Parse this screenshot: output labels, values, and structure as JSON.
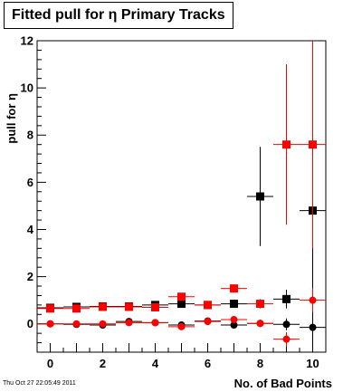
{
  "title": "Fitted pull for  η Primary Tracks",
  "timestamp": "Thu Oct 27 22:05:49 2011",
  "chart_data": {
    "type": "scatter",
    "title": "Fitted pull for  η Primary Tracks",
    "xlabel": "No. of Bad Points",
    "ylabel": "pull for η",
    "xlim": [
      -0.5,
      10.5
    ],
    "ylim": [
      -1.2,
      12.0
    ],
    "x_ticks": [
      0,
      2,
      4,
      6,
      8,
      10
    ],
    "y_ticks": [
      0,
      2,
      4,
      6,
      8,
      10,
      12
    ],
    "grid": false,
    "series": [
      {
        "marker": "square",
        "color": "#000000",
        "points": [
          {
            "x": 0,
            "y": 0.68,
            "err": 0.03
          },
          {
            "x": 1,
            "y": 0.72,
            "err": 0.03
          },
          {
            "x": 2,
            "y": 0.74,
            "err": 0.04
          },
          {
            "x": 3,
            "y": 0.74,
            "err": 0.04
          },
          {
            "x": 4,
            "y": 0.8,
            "err": 0.05
          },
          {
            "x": 5,
            "y": 0.85,
            "err": 0.06
          },
          {
            "x": 6,
            "y": 0.8,
            "err": 0.08
          },
          {
            "x": 7,
            "y": 0.85,
            "err": 0.12
          },
          {
            "x": 8,
            "y": 5.4,
            "err": 2.1
          },
          {
            "x": 9,
            "y": 1.05,
            "err": 0.4
          },
          {
            "x": 10,
            "y": 4.8,
            "err": 7.2
          }
        ]
      },
      {
        "marker": "square",
        "color": "#ff0000",
        "points": [
          {
            "x": 0,
            "y": 0.65,
            "err": 0.03
          },
          {
            "x": 1,
            "y": 0.65,
            "err": 0.03
          },
          {
            "x": 2,
            "y": 0.72,
            "err": 0.04
          },
          {
            "x": 3,
            "y": 0.72,
            "err": 0.04
          },
          {
            "x": 4,
            "y": 0.7,
            "err": 0.05
          },
          {
            "x": 5,
            "y": 1.15,
            "err": 0.06
          },
          {
            "x": 6,
            "y": 0.8,
            "err": 0.08
          },
          {
            "x": 7,
            "y": 1.5,
            "err": 0.12
          },
          {
            "x": 8,
            "y": 0.85,
            "err": 0.2
          },
          {
            "x": 9,
            "y": 7.6,
            "err": 3.4
          },
          {
            "x": 10,
            "y": 7.6,
            "err": 4.4
          }
        ]
      },
      {
        "marker": "circle",
        "color": "#000000",
        "points": [
          {
            "x": 0,
            "y": 0.0,
            "err": 0.02
          },
          {
            "x": 1,
            "y": -0.02,
            "err": 0.02
          },
          {
            "x": 2,
            "y": -0.05,
            "err": 0.03
          },
          {
            "x": 3,
            "y": 0.1,
            "err": 0.03
          },
          {
            "x": 4,
            "y": 0.05,
            "err": 0.04
          },
          {
            "x": 5,
            "y": -0.05,
            "err": 0.05
          },
          {
            "x": 6,
            "y": 0.12,
            "err": 0.06
          },
          {
            "x": 7,
            "y": -0.05,
            "err": 0.1
          },
          {
            "x": 8,
            "y": 0.02,
            "err": 0.15
          },
          {
            "x": 9,
            "y": -0.02,
            "err": 0.25
          },
          {
            "x": 10,
            "y": -0.15,
            "err": 0.4
          }
        ]
      },
      {
        "marker": "circle",
        "color": "#ff0000",
        "points": [
          {
            "x": 0,
            "y": 0.0,
            "err": 0.02
          },
          {
            "x": 1,
            "y": 0.0,
            "err": 0.02
          },
          {
            "x": 2,
            "y": 0.0,
            "err": 0.03
          },
          {
            "x": 3,
            "y": 0.05,
            "err": 0.03
          },
          {
            "x": 4,
            "y": 0.05,
            "err": 0.04
          },
          {
            "x": 5,
            "y": -0.12,
            "err": 0.05
          },
          {
            "x": 6,
            "y": 0.1,
            "err": 0.06
          },
          {
            "x": 7,
            "y": 0.18,
            "err": 0.1
          },
          {
            "x": 8,
            "y": 0.02,
            "err": 0.15
          },
          {
            "x": 9,
            "y": -0.65,
            "err": 0.3
          },
          {
            "x": 10,
            "y": 1.0,
            "err": 0.5
          }
        ]
      }
    ]
  }
}
